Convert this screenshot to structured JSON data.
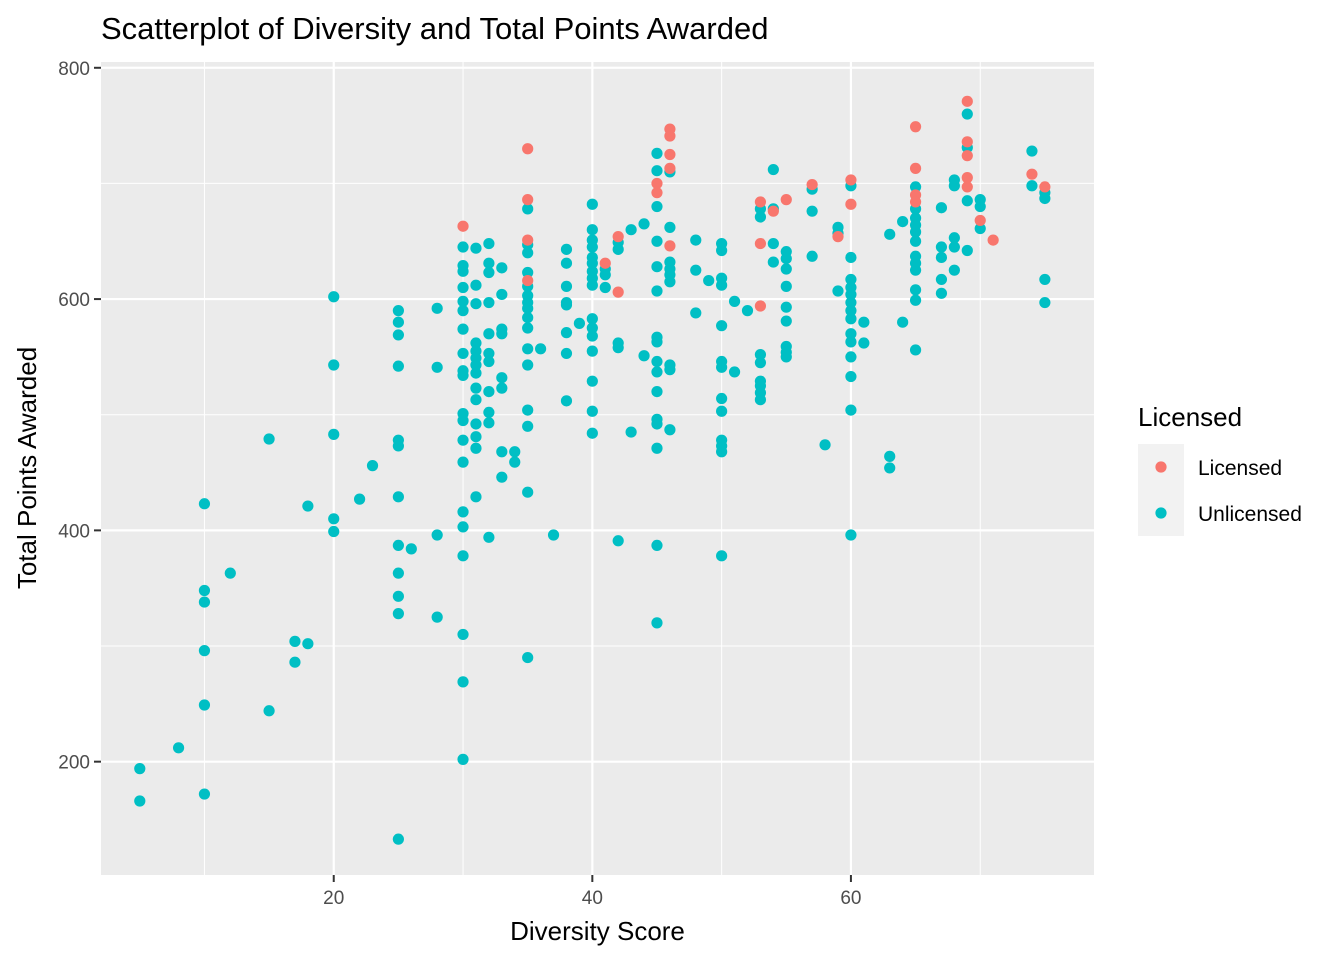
{
  "chart_data": {
    "type": "scatter",
    "title": "Scatterplot of Diversity and Total Points Awarded",
    "xlabel": "Diversity Score",
    "ylabel": "Total Points Awarded",
    "xlim": [
      2.0,
      78.8
    ],
    "ylim": [
      102,
      805
    ],
    "x_ticks": [
      20,
      40,
      60
    ],
    "y_ticks": [
      200,
      400,
      600,
      800
    ],
    "grid": true,
    "legend": {
      "title": "Licensed",
      "position": "right",
      "entries": [
        {
          "label": "Licensed",
          "color": "#F8766D"
        },
        {
          "label": "Unlicensed",
          "color": "#00BFC4"
        }
      ]
    },
    "series": [
      {
        "name": "Licensed",
        "color": "#F8766D",
        "points": [
          [
            30,
            663
          ],
          [
            35,
            730
          ],
          [
            35,
            686
          ],
          [
            35,
            651
          ],
          [
            35,
            616
          ],
          [
            41,
            631
          ],
          [
            42,
            654
          ],
          [
            42,
            606
          ],
          [
            45,
            700
          ],
          [
            45,
            692
          ],
          [
            46,
            747
          ],
          [
            46,
            741
          ],
          [
            46,
            725
          ],
          [
            46,
            713
          ],
          [
            46,
            646
          ],
          [
            53,
            684
          ],
          [
            53,
            648
          ],
          [
            53,
            594
          ],
          [
            54,
            676
          ],
          [
            55,
            686
          ],
          [
            57,
            699
          ],
          [
            59,
            654
          ],
          [
            60,
            703
          ],
          [
            60,
            682
          ],
          [
            65,
            749
          ],
          [
            65,
            713
          ],
          [
            65,
            690
          ],
          [
            65,
            684
          ],
          [
            69,
            771
          ],
          [
            69,
            736
          ],
          [
            69,
            724
          ],
          [
            69,
            705
          ],
          [
            69,
            697
          ],
          [
            70,
            668
          ],
          [
            71,
            651
          ],
          [
            74,
            708
          ],
          [
            75,
            697
          ]
        ]
      },
      {
        "name": "Unlicensed",
        "color": "#00BFC4",
        "points": [
          [
            5,
            194
          ],
          [
            5,
            166
          ],
          [
            8,
            212
          ],
          [
            10,
            423
          ],
          [
            10,
            348
          ],
          [
            10,
            338
          ],
          [
            10,
            296
          ],
          [
            10,
            249
          ],
          [
            10,
            172
          ],
          [
            12,
            363
          ],
          [
            15,
            479
          ],
          [
            15,
            244
          ],
          [
            17,
            304
          ],
          [
            17,
            286
          ],
          [
            18,
            421
          ],
          [
            18,
            302
          ],
          [
            20,
            602
          ],
          [
            20,
            543
          ],
          [
            20,
            483
          ],
          [
            20,
            410
          ],
          [
            20,
            399
          ],
          [
            22,
            427
          ],
          [
            23,
            456
          ],
          [
            25,
            590
          ],
          [
            25,
            580
          ],
          [
            25,
            569
          ],
          [
            25,
            542
          ],
          [
            25,
            478
          ],
          [
            25,
            473
          ],
          [
            25,
            429
          ],
          [
            25,
            387
          ],
          [
            25,
            363
          ],
          [
            25,
            343
          ],
          [
            25,
            328
          ],
          [
            25,
            133
          ],
          [
            26,
            384
          ],
          [
            28,
            592
          ],
          [
            28,
            541
          ],
          [
            28,
            396
          ],
          [
            28,
            325
          ],
          [
            30,
            645
          ],
          [
            30,
            629
          ],
          [
            30,
            624
          ],
          [
            30,
            610
          ],
          [
            30,
            598
          ],
          [
            30,
            590
          ],
          [
            30,
            574
          ],
          [
            30,
            553
          ],
          [
            30,
            538
          ],
          [
            30,
            534
          ],
          [
            30,
            501
          ],
          [
            30,
            495
          ],
          [
            30,
            478
          ],
          [
            30,
            459
          ],
          [
            30,
            416
          ],
          [
            30,
            403
          ],
          [
            30,
            378
          ],
          [
            30,
            310
          ],
          [
            30,
            269
          ],
          [
            30,
            202
          ],
          [
            31,
            644
          ],
          [
            31,
            612
          ],
          [
            31,
            596
          ],
          [
            31,
            562
          ],
          [
            31,
            555
          ],
          [
            31,
            549
          ],
          [
            31,
            543
          ],
          [
            31,
            536
          ],
          [
            31,
            523
          ],
          [
            31,
            513
          ],
          [
            31,
            492
          ],
          [
            31,
            481
          ],
          [
            31,
            471
          ],
          [
            31,
            429
          ],
          [
            32,
            648
          ],
          [
            32,
            631
          ],
          [
            32,
            623
          ],
          [
            32,
            597
          ],
          [
            32,
            570
          ],
          [
            32,
            553
          ],
          [
            32,
            546
          ],
          [
            32,
            520
          ],
          [
            32,
            502
          ],
          [
            32,
            493
          ],
          [
            32,
            394
          ],
          [
            33,
            627
          ],
          [
            33,
            604
          ],
          [
            33,
            574
          ],
          [
            33,
            570
          ],
          [
            33,
            532
          ],
          [
            33,
            523
          ],
          [
            33,
            468
          ],
          [
            33,
            446
          ],
          [
            34,
            468
          ],
          [
            34,
            459
          ],
          [
            35,
            678
          ],
          [
            35,
            647
          ],
          [
            35,
            640
          ],
          [
            35,
            623
          ],
          [
            35,
            611
          ],
          [
            35,
            603
          ],
          [
            35,
            597
          ],
          [
            35,
            592
          ],
          [
            35,
            584
          ],
          [
            35,
            575
          ],
          [
            35,
            557
          ],
          [
            35,
            543
          ],
          [
            35,
            504
          ],
          [
            35,
            490
          ],
          [
            35,
            433
          ],
          [
            35,
            290
          ],
          [
            36,
            557
          ],
          [
            37,
            396
          ],
          [
            38,
            643
          ],
          [
            38,
            631
          ],
          [
            38,
            611
          ],
          [
            38,
            597
          ],
          [
            38,
            595
          ],
          [
            38,
            571
          ],
          [
            38,
            553
          ],
          [
            38,
            512
          ],
          [
            39,
            579
          ],
          [
            40,
            682
          ],
          [
            40,
            660
          ],
          [
            40,
            651
          ],
          [
            40,
            645
          ],
          [
            40,
            636
          ],
          [
            40,
            631
          ],
          [
            40,
            624
          ],
          [
            40,
            618
          ],
          [
            40,
            612
          ],
          [
            40,
            583
          ],
          [
            40,
            575
          ],
          [
            40,
            568
          ],
          [
            40,
            555
          ],
          [
            40,
            529
          ],
          [
            40,
            503
          ],
          [
            40,
            484
          ],
          [
            41,
            626
          ],
          [
            41,
            621
          ],
          [
            41,
            610
          ],
          [
            42,
            649
          ],
          [
            42,
            643
          ],
          [
            42,
            562
          ],
          [
            42,
            558
          ],
          [
            42,
            391
          ],
          [
            43,
            660
          ],
          [
            43,
            485
          ],
          [
            44,
            665
          ],
          [
            44,
            551
          ],
          [
            45,
            726
          ],
          [
            45,
            711
          ],
          [
            45,
            680
          ],
          [
            45,
            650
          ],
          [
            45,
            628
          ],
          [
            45,
            607
          ],
          [
            45,
            567
          ],
          [
            45,
            563
          ],
          [
            45,
            546
          ],
          [
            45,
            537
          ],
          [
            45,
            520
          ],
          [
            45,
            496
          ],
          [
            45,
            492
          ],
          [
            45,
            471
          ],
          [
            45,
            387
          ],
          [
            45,
            320
          ],
          [
            46,
            710
          ],
          [
            46,
            662
          ],
          [
            46,
            632
          ],
          [
            46,
            626
          ],
          [
            46,
            621
          ],
          [
            46,
            615
          ],
          [
            46,
            543
          ],
          [
            46,
            539
          ],
          [
            46,
            487
          ],
          [
            48,
            651
          ],
          [
            48,
            625
          ],
          [
            48,
            588
          ],
          [
            49,
            616
          ],
          [
            50,
            648
          ],
          [
            50,
            642
          ],
          [
            50,
            618
          ],
          [
            50,
            612
          ],
          [
            50,
            577
          ],
          [
            50,
            546
          ],
          [
            50,
            541
          ],
          [
            50,
            514
          ],
          [
            50,
            503
          ],
          [
            50,
            478
          ],
          [
            50,
            473
          ],
          [
            50,
            468
          ],
          [
            50,
            378
          ],
          [
            51,
            598
          ],
          [
            51,
            537
          ],
          [
            52,
            590
          ],
          [
            53,
            678
          ],
          [
            53,
            671
          ],
          [
            53,
            552
          ],
          [
            53,
            545
          ],
          [
            53,
            529
          ],
          [
            53,
            525
          ],
          [
            53,
            519
          ],
          [
            53,
            513
          ],
          [
            54,
            712
          ],
          [
            54,
            678
          ],
          [
            54,
            648
          ],
          [
            54,
            632
          ],
          [
            55,
            641
          ],
          [
            55,
            635
          ],
          [
            55,
            626
          ],
          [
            55,
            611
          ],
          [
            55,
            593
          ],
          [
            55,
            581
          ],
          [
            55,
            559
          ],
          [
            55,
            554
          ],
          [
            55,
            550
          ],
          [
            57,
            695
          ],
          [
            57,
            676
          ],
          [
            57,
            637
          ],
          [
            58,
            474
          ],
          [
            59,
            662
          ],
          [
            59,
            657
          ],
          [
            59,
            607
          ],
          [
            60,
            698
          ],
          [
            60,
            636
          ],
          [
            60,
            617
          ],
          [
            60,
            610
          ],
          [
            60,
            604
          ],
          [
            60,
            597
          ],
          [
            60,
            590
          ],
          [
            60,
            583
          ],
          [
            60,
            570
          ],
          [
            60,
            563
          ],
          [
            60,
            550
          ],
          [
            60,
            533
          ],
          [
            60,
            504
          ],
          [
            60,
            396
          ],
          [
            61,
            580
          ],
          [
            61,
            562
          ],
          [
            63,
            656
          ],
          [
            63,
            464
          ],
          [
            63,
            454
          ],
          [
            64,
            667
          ],
          [
            64,
            580
          ],
          [
            65,
            697
          ],
          [
            65,
            678
          ],
          [
            65,
            670
          ],
          [
            65,
            664
          ],
          [
            65,
            658
          ],
          [
            65,
            650
          ],
          [
            65,
            637
          ],
          [
            65,
            631
          ],
          [
            65,
            625
          ],
          [
            65,
            608
          ],
          [
            65,
            599
          ],
          [
            65,
            556
          ],
          [
            67,
            679
          ],
          [
            67,
            645
          ],
          [
            67,
            636
          ],
          [
            67,
            617
          ],
          [
            67,
            605
          ],
          [
            68,
            703
          ],
          [
            68,
            698
          ],
          [
            68,
            653
          ],
          [
            68,
            645
          ],
          [
            68,
            625
          ],
          [
            69,
            760
          ],
          [
            69,
            731
          ],
          [
            69,
            685
          ],
          [
            69,
            642
          ],
          [
            70,
            686
          ],
          [
            70,
            680
          ],
          [
            70,
            661
          ],
          [
            74,
            728
          ],
          [
            74,
            698
          ],
          [
            75,
            692
          ],
          [
            75,
            687
          ],
          [
            75,
            617
          ],
          [
            75,
            597
          ]
        ]
      }
    ]
  }
}
